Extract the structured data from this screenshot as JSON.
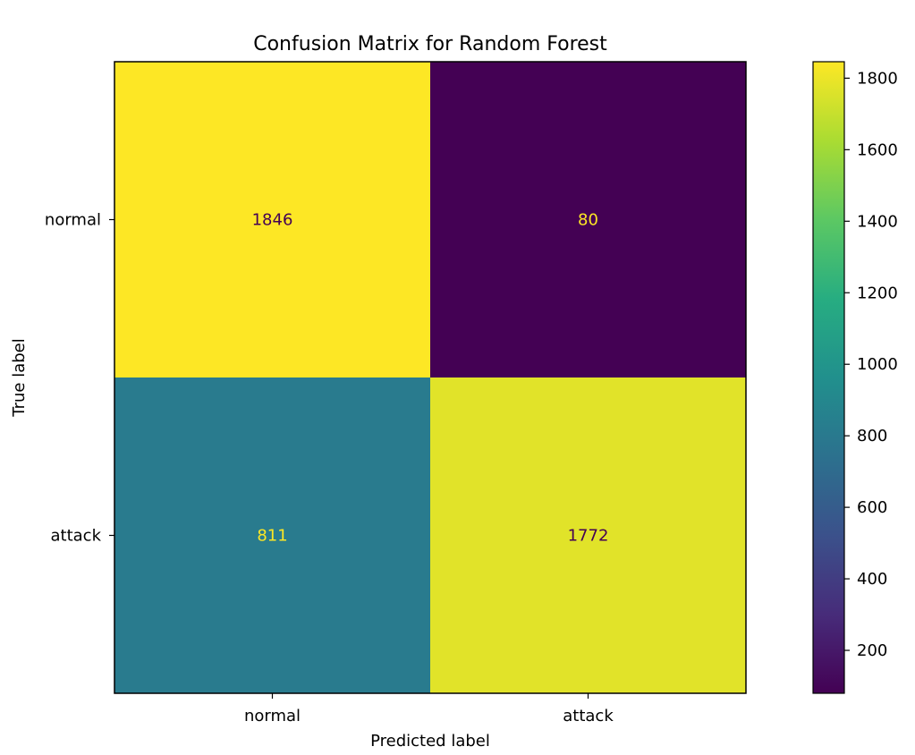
{
  "chart_data": {
    "type": "heatmap",
    "title": "Confusion Matrix for Random Forest",
    "xlabel": "Predicted label",
    "ylabel": "True label",
    "x_categories": [
      "normal",
      "attack"
    ],
    "y_categories": [
      "normal",
      "attack"
    ],
    "values": [
      [
        1846,
        80
      ],
      [
        811,
        1772
      ]
    ],
    "colormap": "viridis",
    "colorbar": {
      "range": [
        80,
        1846
      ],
      "ticks": [
        200,
        400,
        600,
        800,
        1000,
        1200,
        1400,
        1600,
        1800
      ]
    },
    "grid": false
  }
}
